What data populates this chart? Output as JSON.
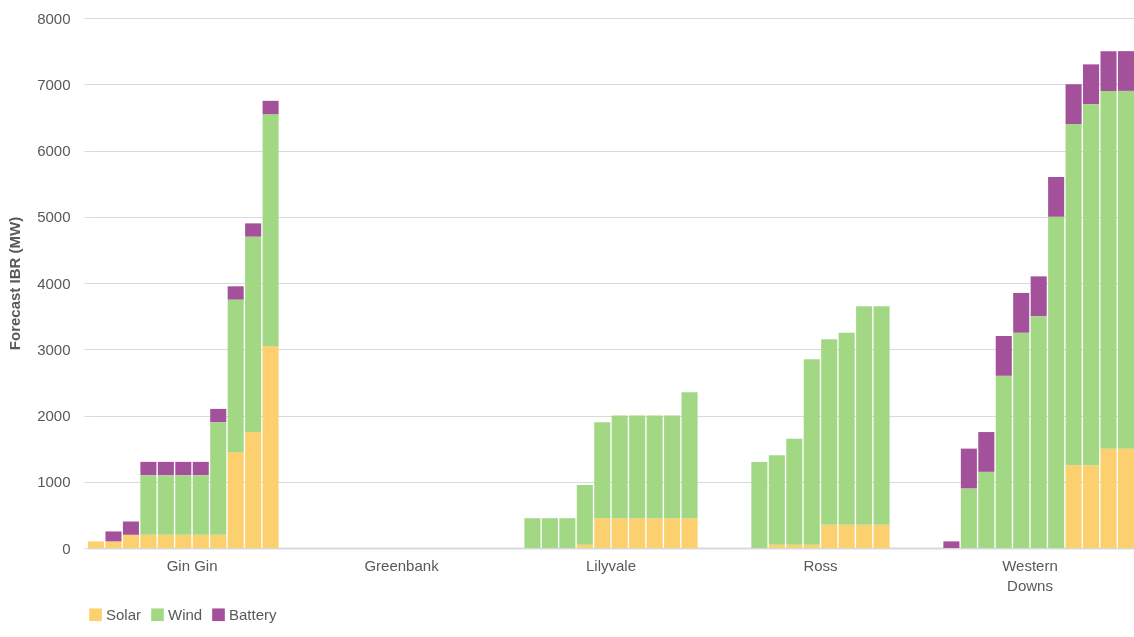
{
  "chart_data": {
    "type": "bar",
    "stacked": true,
    "ylabel": "Forecast IBR (MW)",
    "categories": [
      null,
      null,
      null,
      null,
      null,
      null,
      "Gin Gin",
      null,
      null,
      null,
      null,
      null,
      null,
      null,
      null,
      null,
      null,
      null,
      "Greenbank",
      null,
      null,
      null,
      null,
      null,
      null,
      null,
      null,
      null,
      null,
      null,
      "Lilyvale",
      null,
      null,
      null,
      null,
      null,
      null,
      null,
      null,
      null,
      null,
      null,
      "Ross",
      null,
      null,
      null,
      null,
      null,
      null,
      null,
      null,
      null,
      null,
      null,
      "Western Downs",
      null,
      null,
      null,
      null,
      null
    ],
    "series": [
      {
        "name": "Solar",
        "color": "#fcd06f",
        "values": [
          100,
          100,
          200,
          200,
          200,
          200,
          200,
          200,
          1450,
          1750,
          3050,
          null,
          null,
          null,
          null,
          null,
          null,
          null,
          null,
          null,
          null,
          null,
          null,
          null,
          null,
          0,
          0,
          0,
          50,
          450,
          450,
          450,
          450,
          450,
          450,
          null,
          null,
          null,
          0,
          50,
          50,
          50,
          350,
          350,
          350,
          350,
          null,
          null,
          null,
          0,
          0,
          0,
          0,
          0,
          0,
          0,
          1250,
          1250,
          1500,
          1500
        ]
      },
      {
        "name": "Wind",
        "color": "#a2d884",
        "values": [
          0,
          0,
          0,
          900,
          900,
          900,
          900,
          1700,
          2300,
          2950,
          3500,
          null,
          null,
          null,
          null,
          null,
          null,
          null,
          null,
          null,
          null,
          null,
          null,
          null,
          null,
          450,
          450,
          450,
          900,
          1450,
          1550,
          1550,
          1550,
          1550,
          1900,
          null,
          null,
          null,
          1300,
          1350,
          1600,
          2800,
          2800,
          2900,
          3300,
          3300,
          null,
          null,
          null,
          0,
          900,
          1150,
          2600,
          3250,
          3500,
          5000,
          5150,
          5450,
          5400,
          5400
        ]
      },
      {
        "name": "Battery",
        "color": "#a3519a",
        "values": [
          0,
          150,
          200,
          200,
          200,
          200,
          200,
          200,
          200,
          200,
          200,
          null,
          null,
          null,
          null,
          null,
          null,
          null,
          null,
          null,
          null,
          null,
          null,
          null,
          null,
          0,
          0,
          0,
          0,
          0,
          0,
          0,
          0,
          0,
          0,
          null,
          null,
          null,
          0,
          0,
          0,
          0,
          0,
          0,
          0,
          0,
          null,
          null,
          null,
          100,
          600,
          600,
          600,
          600,
          600,
          600,
          600,
          600,
          600,
          600
        ]
      }
    ],
    "ylim": [
      0,
      8000
    ],
    "yticks": [
      0,
      1000,
      2000,
      3000,
      4000,
      5000,
      6000,
      7000,
      8000
    ],
    "grid": "y",
    "legend": "bottom"
  }
}
